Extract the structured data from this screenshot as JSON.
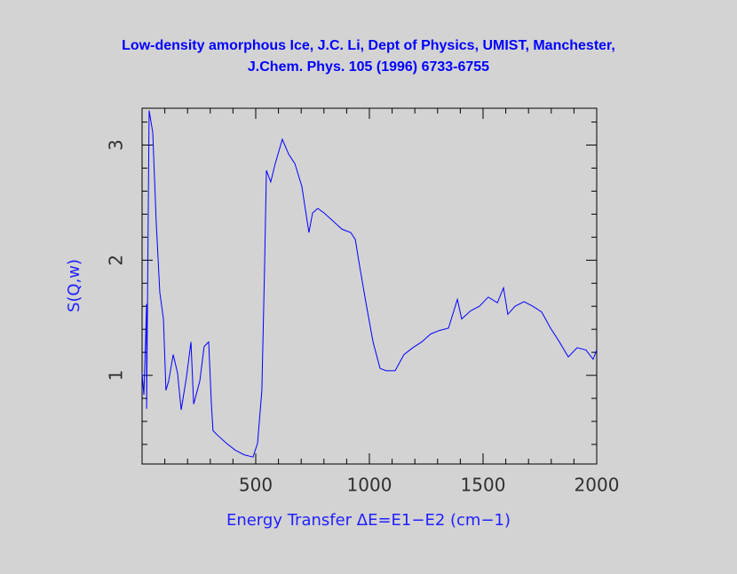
{
  "chart_data": {
    "type": "line",
    "title": [
      "Low-density amorphous Ice, J.C. Li, Dept of Physics, UMIST, Manchester,",
      "J.Chem. Phys. 105 (1996) 6733-6755"
    ],
    "x_label": "Energy Transfer ΔE=E1−E2 (cm−1)",
    "y_label": "S(Q,w)",
    "xlim": [
      0,
      2000
    ],
    "ylim": [
      0.23,
      3.32
    ],
    "xticks": [
      500,
      1000,
      1500,
      2000
    ],
    "yticks": [
      1,
      2,
      3
    ],
    "xminorticks": [
      100,
      200,
      300,
      400,
      600,
      700,
      800,
      900,
      1100,
      1200,
      1300,
      1400,
      1600,
      1700,
      1800,
      1900
    ],
    "yminorticks": [
      0.4,
      0.6,
      0.8,
      1.2,
      1.4,
      1.6,
      1.8,
      2.2,
      2.4,
      2.6,
      2.8,
      3.2
    ],
    "series": [
      {
        "color": "#0000ff",
        "x": [
          0,
          8,
          20,
          20,
          31,
          47,
          62,
          78,
          94,
          105,
          117,
          137,
          156,
          172,
          195,
          215,
          227,
          254,
          273,
          293,
          305,
          312,
          332,
          371,
          410,
          449,
          488,
          508,
          527,
          539,
          547,
          566,
          586,
          617,
          645,
          672,
          703,
          734,
          750,
          773,
          801,
          840,
          879,
          918,
          938,
          957,
          984,
          1016,
          1047,
          1074,
          1113,
          1152,
          1191,
          1230,
          1270,
          1309,
          1348,
          1387,
          1406,
          1445,
          1484,
          1523,
          1563,
          1590,
          1609,
          1641,
          1680,
          1719,
          1758,
          1797,
          1836,
          1875,
          1914,
          1953,
          1984,
          2000
        ],
        "values": [
          1.02,
          0.83,
          1.62,
          0.71,
          3.3,
          3.11,
          2.34,
          1.72,
          1.49,
          0.87,
          0.95,
          1.18,
          1.02,
          0.7,
          0.98,
          1.29,
          0.75,
          0.95,
          1.25,
          1.29,
          0.75,
          0.52,
          0.48,
          0.41,
          0.35,
          0.31,
          0.29,
          0.41,
          0.87,
          1.95,
          2.78,
          2.68,
          2.84,
          3.05,
          2.92,
          2.84,
          2.64,
          2.24,
          2.41,
          2.45,
          2.41,
          2.34,
          2.27,
          2.24,
          2.18,
          1.95,
          1.64,
          1.29,
          1.06,
          1.04,
          1.04,
          1.18,
          1.24,
          1.29,
          1.36,
          1.39,
          1.41,
          1.66,
          1.49,
          1.56,
          1.6,
          1.68,
          1.63,
          1.76,
          1.53,
          1.6,
          1.64,
          1.6,
          1.55,
          1.41,
          1.29,
          1.16,
          1.24,
          1.22,
          1.14,
          1.22
        ]
      }
    ]
  }
}
